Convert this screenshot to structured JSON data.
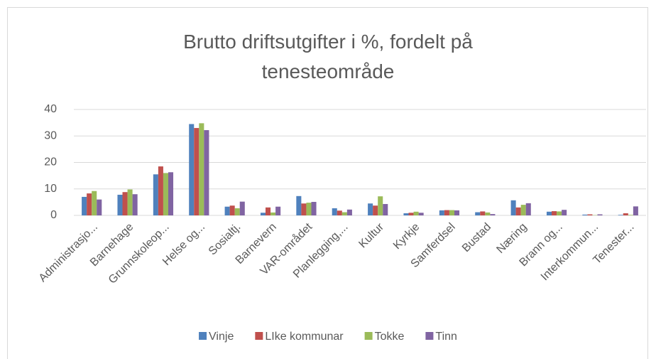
{
  "chart_data": {
    "type": "bar",
    "title": "Brutto driftsutgifter i %, fordelt på tenesteområde",
    "categories": [
      "Administrasjo...",
      "Barnehage",
      "Grunnskoleop...",
      "Helse og...",
      "Sosialtj.",
      "Barnevern",
      "VAR-området",
      "Planlegging,...",
      "Kultur",
      "Kyrkje",
      "Samferdsel",
      "Bustad",
      "Næring",
      "Brann og...",
      "Interkommun...",
      "Tenester..."
    ],
    "series": [
      {
        "name": "Vinje",
        "color": "#4f81bd",
        "values": [
          7,
          7.8,
          15.5,
          34.5,
          3.3,
          1,
          7.3,
          2.7,
          4.5,
          0.8,
          1.9,
          1.2,
          5.7,
          1.4,
          0.3,
          0.2
        ]
      },
      {
        "name": "LIke kommunar",
        "color": "#c0504d",
        "values": [
          8.3,
          8.8,
          18.5,
          33,
          3.7,
          3,
          4.5,
          1.8,
          3.7,
          1,
          2,
          1.5,
          3,
          1.6,
          0.4,
          0.8
        ]
      },
      {
        "name": "Tokke",
        "color": "#9bbb59",
        "values": [
          9.2,
          9.8,
          16,
          34.8,
          2.7,
          1.1,
          4.8,
          1.2,
          7.2,
          1.4,
          2,
          1.1,
          4,
          1.5,
          0.1,
          0.2
        ]
      },
      {
        "name": "Tinn",
        "color": "#8064a2",
        "values": [
          6,
          8,
          16.3,
          32.2,
          5.2,
          3.3,
          5.1,
          2.2,
          4.3,
          1,
          1.9,
          0.5,
          4.6,
          2.1,
          0.4,
          3.4
        ]
      }
    ],
    "ylim": [
      0,
      40
    ],
    "yticks": [
      0,
      10,
      20,
      30,
      40
    ],
    "grid": true,
    "legend": "bottom"
  }
}
